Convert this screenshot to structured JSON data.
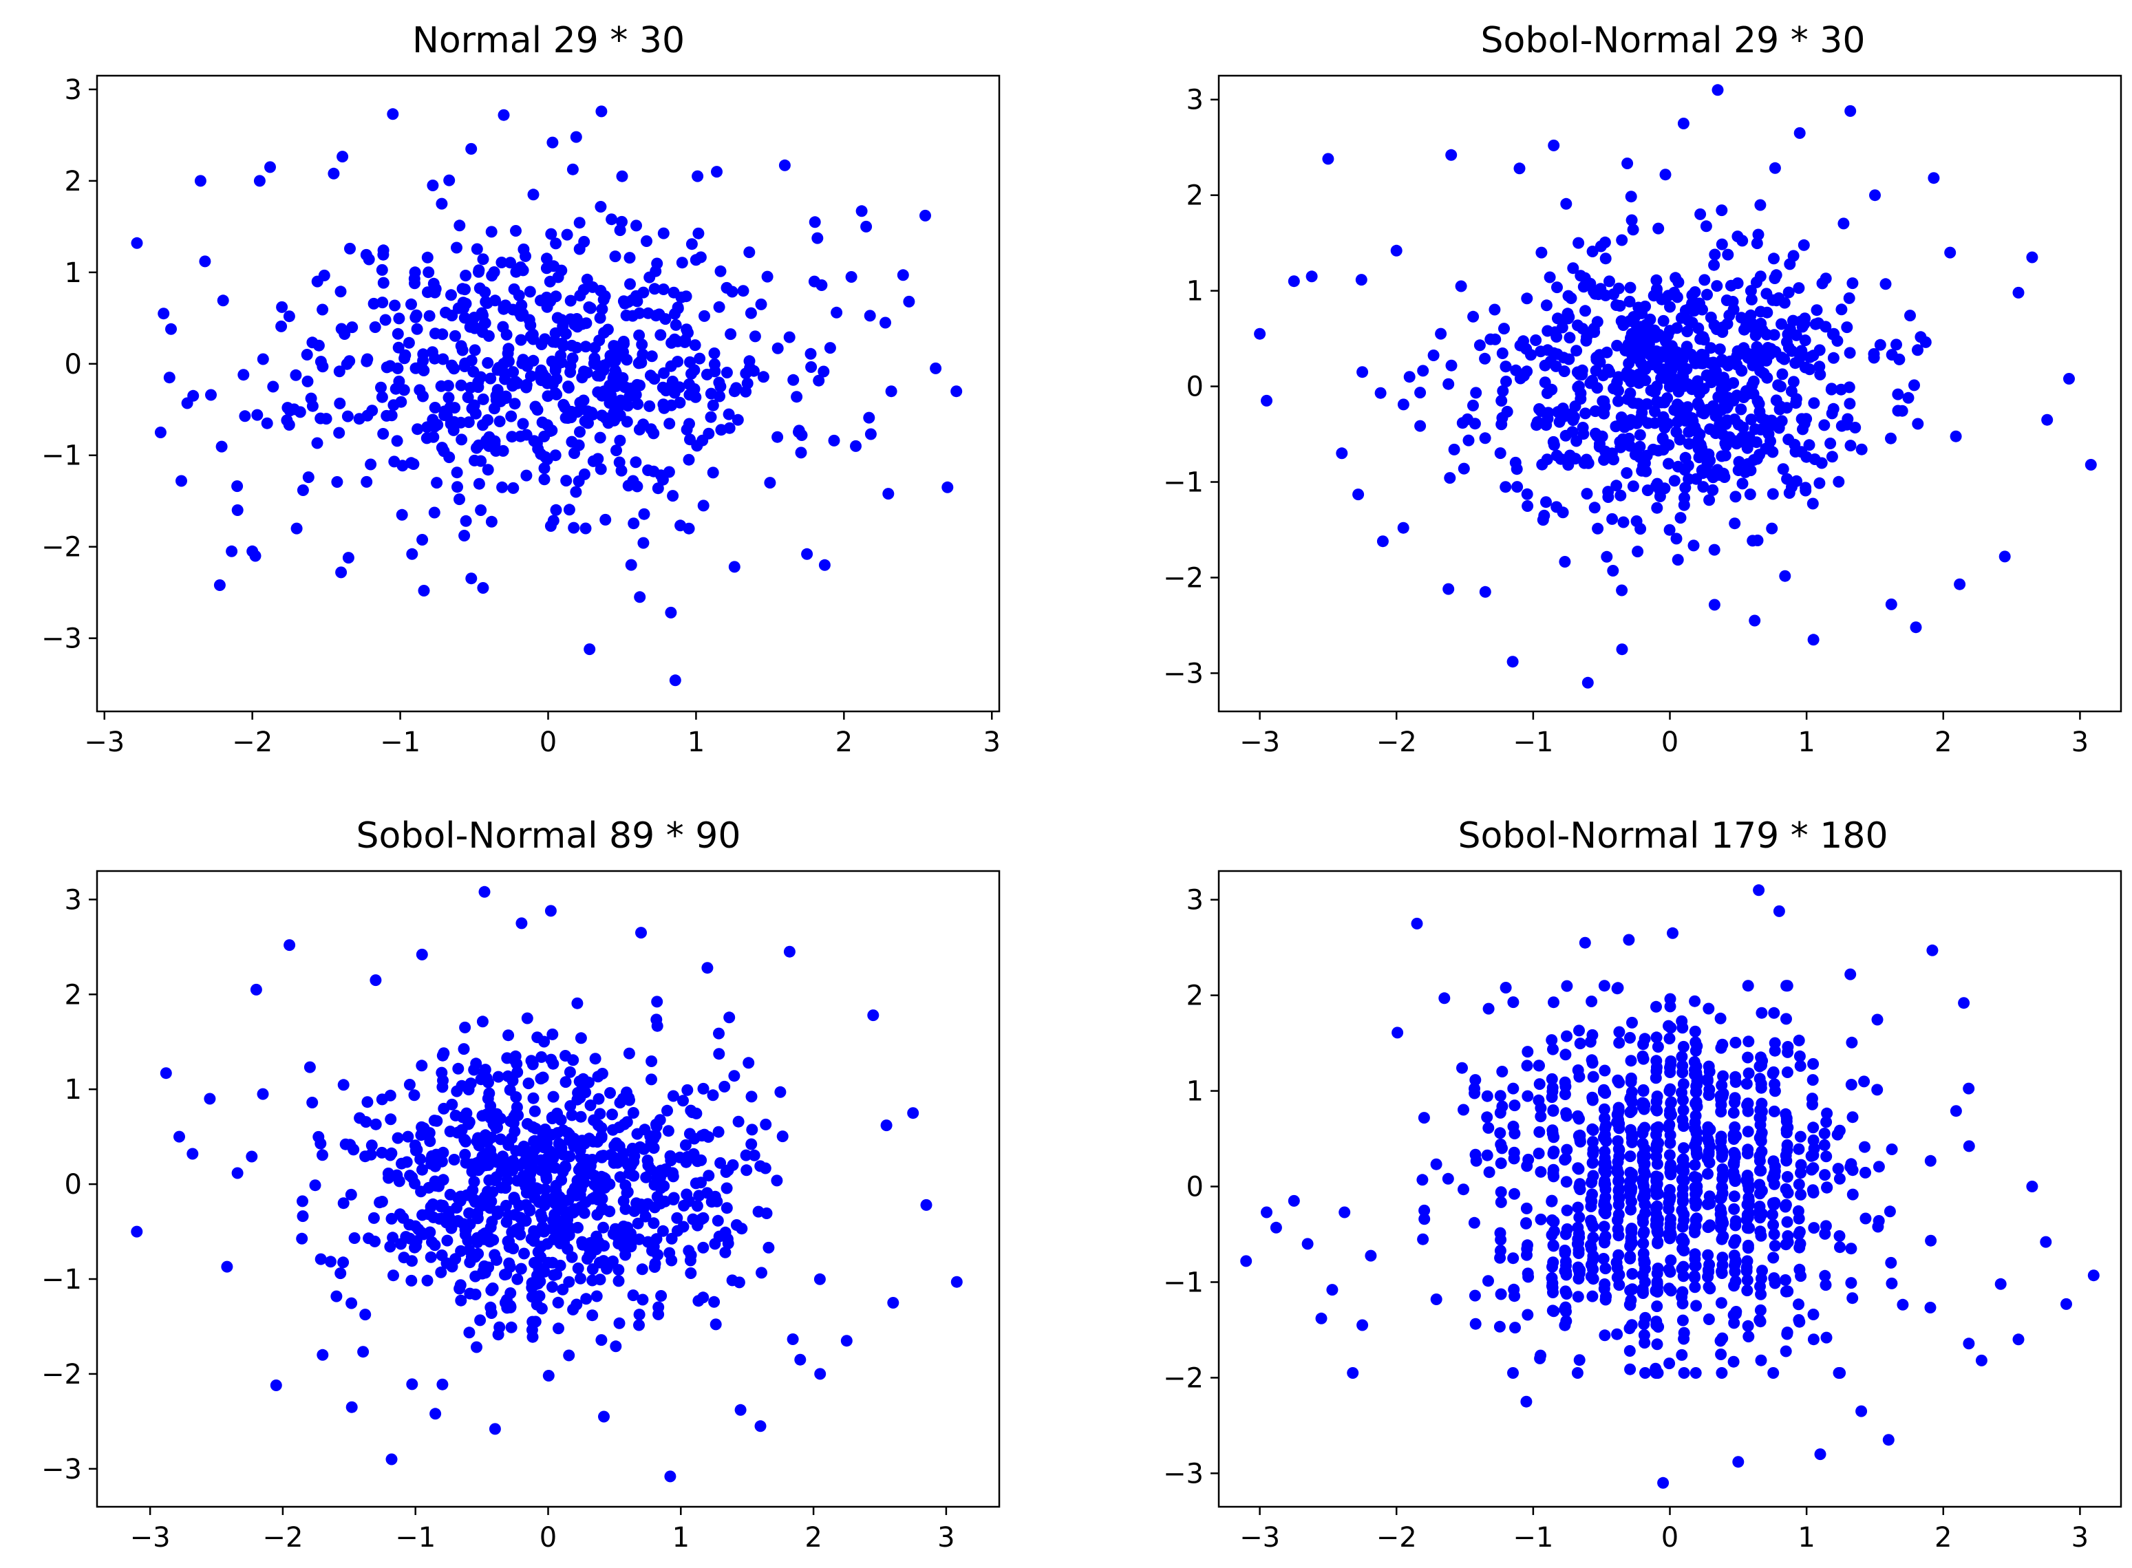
{
  "figure": {
    "background": "#ffffff",
    "point_color": "#0000ff"
  },
  "chart_data": [
    {
      "type": "scatter",
      "title": "Normal 29 * 30",
      "xlabel": "",
      "ylabel": "",
      "xlim": [
        -3.05,
        3.05
      ],
      "ylim": [
        -3.8,
        3.15
      ],
      "xticks": [
        -3,
        -2,
        -1,
        0,
        1,
        2,
        3
      ],
      "yticks": [
        -3,
        -2,
        -1,
        0,
        1,
        2,
        3
      ],
      "grid": false,
      "x": [
        -2.78,
        -2.62,
        -2.55,
        -2.48,
        -2.44,
        -2.35,
        -2.32,
        -2.28,
        -2.22,
        -2.14,
        -2.1,
        -2.06,
        -1.98,
        -1.95,
        -1.88,
        -1.86,
        -1.8,
        -1.7,
        -1.63,
        -1.56,
        -1.5,
        -1.45,
        -1.4,
        -1.35,
        -1.05,
        -0.92,
        -0.84,
        -0.52,
        -0.3,
        0.03,
        0.19,
        0.36,
        0.28,
        0.86,
        0.83,
        2.7,
        2.55,
        2.4,
        2.3,
        2.12,
        2.05,
        1.87,
        1.6,
        1.75,
        -0.78,
        -0.6,
        -0.44,
        -0.1,
        0.5,
        1.14,
        1.26,
        0.05,
        -2.0,
        -1.62,
        -1.2,
        -0.9,
        1.5,
        2.44,
        1.4,
        0.62,
        -2.56,
        -2.4,
        -1.75,
        -1.1,
        -0.7,
        2.62,
        2.32,
        2.15,
        1.95,
        1.8,
        1.55,
        2.76,
        2.08,
        1.36,
        1.05,
        -0.4,
        0.72,
        1.68,
        2.28,
        -2.6,
        -1.9
      ],
      "y": [
        1.32,
        -0.75,
        0.38,
        -1.28,
        -0.43,
        2.0,
        1.12,
        -0.34,
        -2.42,
        -2.05,
        -1.6,
        -0.12,
        -2.1,
        2.0,
        2.15,
        -0.25,
        0.62,
        -1.8,
        0.1,
        0.9,
        -0.6,
        2.08,
        -2.28,
        -2.12,
        2.73,
        -2.08,
        -2.48,
        2.35,
        2.72,
        2.42,
        2.48,
        2.76,
        -3.12,
        -3.46,
        -2.72,
        -1.35,
        1.62,
        0.97,
        -1.42,
        1.67,
        0.95,
        -2.2,
        2.17,
        -2.08,
        1.95,
        -1.48,
        -2.45,
        1.85,
        2.05,
        2.1,
        -2.22,
        -1.0,
        -2.05,
        -1.24,
        -1.1,
        1.0,
        -1.3,
        0.68,
        0.3,
        -2.55,
        -0.15,
        -0.35,
        0.52,
        0.48,
        -0.52,
        -0.05,
        -0.3,
        1.5,
        0.56,
        0.9,
        -0.8,
        -0.3,
        -0.9,
        1.22,
        -1.55,
        -0.9,
        0.82,
        -0.36,
        0.45,
        0.55,
        -0.65
      ],
      "cluster": {
        "n": 640,
        "sd": 0.78,
        "seed": 11
      }
    },
    {
      "type": "scatter",
      "title": "Sobol-Normal 29 * 30",
      "xlabel": "",
      "ylabel": "",
      "xlim": [
        -3.3,
        3.3
      ],
      "ylim": [
        -3.4,
        3.25
      ],
      "xticks": [
        -3,
        -2,
        -1,
        0,
        1,
        2,
        3
      ],
      "yticks": [
        -3,
        -2,
        -1,
        0,
        1,
        2,
        3
      ],
      "grid": false,
      "x": [
        -3.0,
        -2.75,
        -2.95,
        -2.62,
        -2.5,
        -2.28,
        -2.25,
        -2.1,
        -1.95,
        -1.62,
        -1.15,
        -0.6,
        -0.35,
        -1.1,
        0.35,
        0.62,
        0.95,
        1.32,
        1.62,
        1.93,
        2.12,
        2.65,
        2.92,
        2.76,
        3.08,
        2.45,
        1.8,
        2.05,
        -2.0,
        -1.6,
        1.5,
        1.05,
        -0.85,
        0.1,
        -1.35,
        -2.4,
        2.55
      ],
      "y": [
        0.55,
        1.1,
        -0.15,
        1.15,
        2.38,
        -1.13,
        0.15,
        -1.62,
        -1.48,
        -2.12,
        -2.88,
        -3.1,
        -2.75,
        2.28,
        3.1,
        -2.45,
        2.65,
        2.88,
        -2.28,
        2.18,
        -2.07,
        1.35,
        0.08,
        -0.35,
        -0.82,
        -1.78,
        -2.52,
        1.4,
        1.42,
        2.42,
        2.0,
        -2.65,
        2.52,
        2.75,
        -2.15,
        -0.7,
        0.98
      ],
      "cluster": {
        "n": 780,
        "sd": 0.72,
        "seed": 23
      }
    },
    {
      "type": "scatter",
      "title": "Sobol-Normal 89 * 90",
      "xlabel": "",
      "ylabel": "",
      "xlim": [
        -3.4,
        3.4
      ],
      "ylim": [
        -3.4,
        3.3
      ],
      "xticks": [
        -3,
        -2,
        -1,
        0,
        1,
        2,
        3
      ],
      "yticks": [
        -3,
        -2,
        -1,
        0,
        1,
        2,
        3
      ],
      "grid": false,
      "x": [
        -3.1,
        -2.88,
        -2.78,
        -2.68,
        -2.55,
        -2.42,
        -2.2,
        -2.15,
        -2.05,
        -1.95,
        -1.7,
        -1.48,
        -1.18,
        -0.95,
        -0.48,
        -0.4,
        0.02,
        0.42,
        0.92,
        1.2,
        1.45,
        1.6,
        1.82,
        2.05,
        2.25,
        2.45,
        2.55,
        2.75,
        2.85,
        3.08,
        2.6,
        -0.85,
        -1.3,
        0.7,
        -0.2,
        1.9
      ],
      "y": [
        -0.5,
        1.17,
        0.5,
        0.32,
        0.9,
        -0.87,
        2.05,
        0.95,
        -2.12,
        2.52,
        -1.8,
        -2.35,
        -2.9,
        2.42,
        3.08,
        -2.58,
        2.88,
        -2.45,
        -3.08,
        2.28,
        -2.38,
        -2.55,
        2.45,
        -2.0,
        -1.65,
        1.78,
        0.62,
        0.75,
        -0.22,
        -1.03,
        -1.25,
        -2.42,
        2.15,
        2.65,
        2.75,
        -1.85
      ],
      "cluster": {
        "n": 850,
        "sd": 0.72,
        "seed": 37
      }
    },
    {
      "type": "scatter",
      "title": "Sobol-Normal 179 * 180",
      "xlabel": "",
      "ylabel": "",
      "xlim": [
        -3.3,
        3.3
      ],
      "ylim": [
        -3.35,
        3.3
      ],
      "xticks": [
        -3,
        -2,
        -1,
        0,
        1,
        2,
        3
      ],
      "yticks": [
        -3,
        -2,
        -1,
        0,
        1,
        2,
        3
      ],
      "grid": false,
      "x": [
        -3.1,
        -2.95,
        -2.88,
        -2.75,
        -2.65,
        -2.55,
        -2.47,
        -2.38,
        -2.32,
        -2.25,
        -1.85,
        -1.65,
        -1.2,
        -0.62,
        -0.3,
        0.02,
        0.5,
        0.65,
        0.8,
        1.32,
        1.6,
        1.92,
        2.15,
        2.28,
        2.42,
        2.55,
        2.65,
        2.75,
        2.9,
        3.1,
        -0.05,
        1.1,
        -1.05,
        1.4
      ],
      "y": [
        -0.78,
        -0.27,
        -0.43,
        -0.15,
        -0.6,
        -1.38,
        -1.08,
        -0.27,
        -1.95,
        -1.45,
        2.75,
        1.97,
        2.08,
        2.55,
        2.58,
        2.65,
        -2.88,
        3.1,
        2.88,
        2.22,
        -2.65,
        2.47,
        1.92,
        -1.82,
        -1.02,
        -1.6,
        0.0,
        -0.58,
        -1.23,
        -0.93,
        -3.1,
        -2.8,
        -2.25,
        -2.35
      ],
      "cluster": {
        "n": 980,
        "sd": 0.7,
        "seed": 51,
        "columns": true
      }
    }
  ]
}
